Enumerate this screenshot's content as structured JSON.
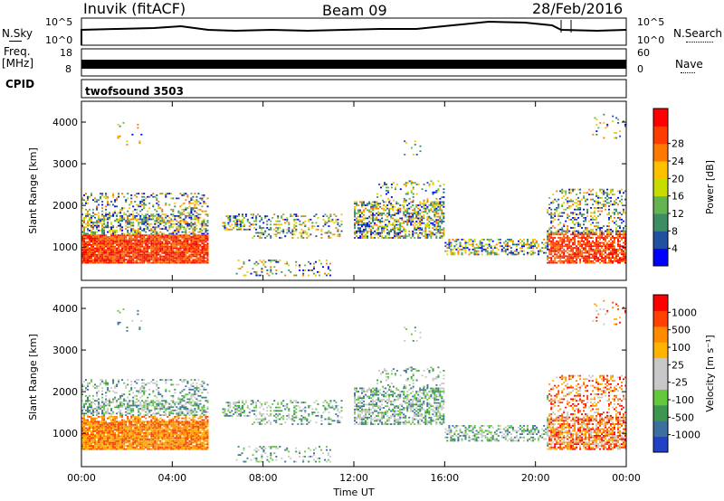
{
  "header": {
    "station": "Inuvik (fitACF)",
    "beam": "Beam 09",
    "date": "28/Feb/2016"
  },
  "strip_labels": {
    "nsky": "N.Sky",
    "nsearch": "N.Search",
    "freq_line1": "Freq.",
    "freq_line2": "[MHz]",
    "nave": "Nave",
    "cpid": "CPID",
    "cpid_value": "twofsound 3503",
    "nsky_ticks": [
      "10^5",
      "10^0"
    ],
    "nsearch_ticks": [
      "10^5",
      "10^0"
    ],
    "freq_ticks": [
      "18",
      "8"
    ],
    "nave_ticks": [
      "60",
      "0"
    ]
  },
  "colors": {
    "power": [
      "#0000ff",
      "#2050a0",
      "#3c8c64",
      "#64b450",
      "#c8dc00",
      "#ffc000",
      "#ff7800",
      "#ff3c00",
      "#ff0000"
    ],
    "velocity": [
      "#ff0000",
      "#ff4000",
      "#ff8c00",
      "#ffb400",
      "#c8c8c8",
      "#c8c8c8",
      "#64c83c",
      "#3c9650",
      "#3c6ea0",
      "#2040c8"
    ]
  },
  "chart_data": [
    {
      "type": "heatmap",
      "name": "power",
      "ylabel": "Slant Range [km]",
      "xlabel": "",
      "ylim": [
        200,
        4500
      ],
      "xlim": [
        "00:00",
        "24:00"
      ],
      "yticks": [
        "1000",
        "2000",
        "3000",
        "4000"
      ],
      "xticks": [
        "00:00",
        "04:00",
        "08:00",
        "12:00",
        "16:00",
        "20:00",
        "00:00"
      ],
      "colorbar": {
        "label": "Power [dB]",
        "ticks": [
          "4",
          "8",
          "12",
          "16",
          "20",
          "24",
          "28"
        ]
      }
    },
    {
      "type": "heatmap",
      "name": "velocity",
      "ylabel": "Slant Range [km]",
      "xlabel": "Time UT",
      "ylim": [
        200,
        4500
      ],
      "xlim": [
        "00:00",
        "24:00"
      ],
      "yticks": [
        "1000",
        "2000",
        "3000",
        "4000"
      ],
      "xticks": [
        "00:00",
        "04:00",
        "08:00",
        "12:00",
        "16:00",
        "20:00",
        "00:00"
      ],
      "colorbar": {
        "label": "Velocity [m s⁻¹]",
        "ticks": [
          "1000",
          "500",
          "100",
          "25",
          "-25",
          "-100",
          "-500",
          "-1000"
        ]
      }
    }
  ]
}
